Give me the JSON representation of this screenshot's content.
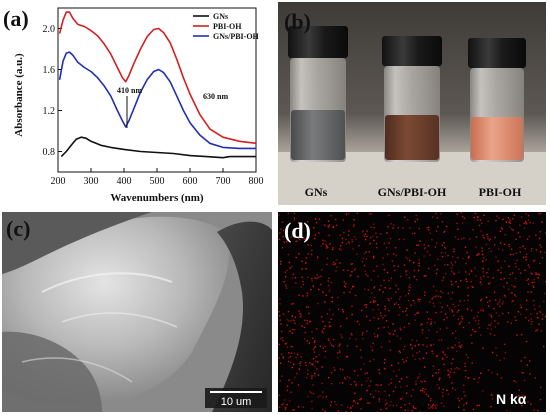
{
  "panels": {
    "a": {
      "letter": "(a)"
    },
    "b": {
      "letter": "(b)",
      "vial_labels": [
        "GNs",
        "GNs/PBI-OH",
        "PBI-OH"
      ]
    },
    "c": {
      "letter": "(c)",
      "scale_bar_label": "10 um"
    },
    "d": {
      "letter": "(d)",
      "element_label": "N kα"
    }
  },
  "chart_data": {
    "type": "line",
    "xlabel": "Wavenumbers (nm)",
    "ylabel": "Absorbance (a.u.)",
    "xlim": [
      200,
      800
    ],
    "ylim": [
      0.6,
      2.2
    ],
    "x_ticks": [
      200,
      300,
      400,
      500,
      600,
      700,
      800
    ],
    "y_ticks": [
      0.8,
      1.2,
      1.6,
      2.0
    ],
    "legend_position": "top-right",
    "annotations": [
      "410 nm",
      "630 nm"
    ],
    "series": [
      {
        "name": "GNs",
        "color": "#111111",
        "x": [
          210,
          225,
          240,
          255,
          270,
          285,
          300,
          330,
          360,
          400,
          450,
          500,
          550,
          600,
          650,
          700,
          720,
          760,
          800
        ],
        "y": [
          0.75,
          0.8,
          0.86,
          0.92,
          0.94,
          0.93,
          0.9,
          0.86,
          0.84,
          0.82,
          0.8,
          0.79,
          0.78,
          0.76,
          0.75,
          0.74,
          0.75,
          0.75,
          0.75
        ]
      },
      {
        "name": "PBI-OH",
        "color": "#d42020",
        "x": [
          205,
          215,
          225,
          235,
          245,
          260,
          280,
          300,
          320,
          340,
          360,
          380,
          395,
          405,
          415,
          430,
          450,
          470,
          490,
          505,
          520,
          540,
          560,
          580,
          600,
          630,
          660,
          700,
          750,
          800
        ],
        "y": [
          1.95,
          2.08,
          2.16,
          2.16,
          2.1,
          2.04,
          2.02,
          1.98,
          1.93,
          1.85,
          1.75,
          1.62,
          1.52,
          1.48,
          1.54,
          1.66,
          1.8,
          1.92,
          1.99,
          2.0,
          1.96,
          1.86,
          1.7,
          1.52,
          1.36,
          1.16,
          1.02,
          0.94,
          0.9,
          0.88
        ]
      },
      {
        "name": "GNs/PBI-OH",
        "color": "#2030b0",
        "x": [
          205,
          215,
          225,
          235,
          245,
          260,
          280,
          300,
          320,
          340,
          360,
          380,
          395,
          405,
          415,
          430,
          450,
          470,
          490,
          505,
          520,
          540,
          560,
          580,
          600,
          630,
          660,
          700,
          750,
          800
        ],
        "y": [
          1.5,
          1.68,
          1.76,
          1.77,
          1.74,
          1.67,
          1.62,
          1.58,
          1.52,
          1.44,
          1.34,
          1.2,
          1.1,
          1.04,
          1.1,
          1.22,
          1.38,
          1.5,
          1.58,
          1.6,
          1.57,
          1.48,
          1.34,
          1.2,
          1.08,
          0.96,
          0.88,
          0.84,
          0.83,
          0.83
        ]
      }
    ]
  }
}
